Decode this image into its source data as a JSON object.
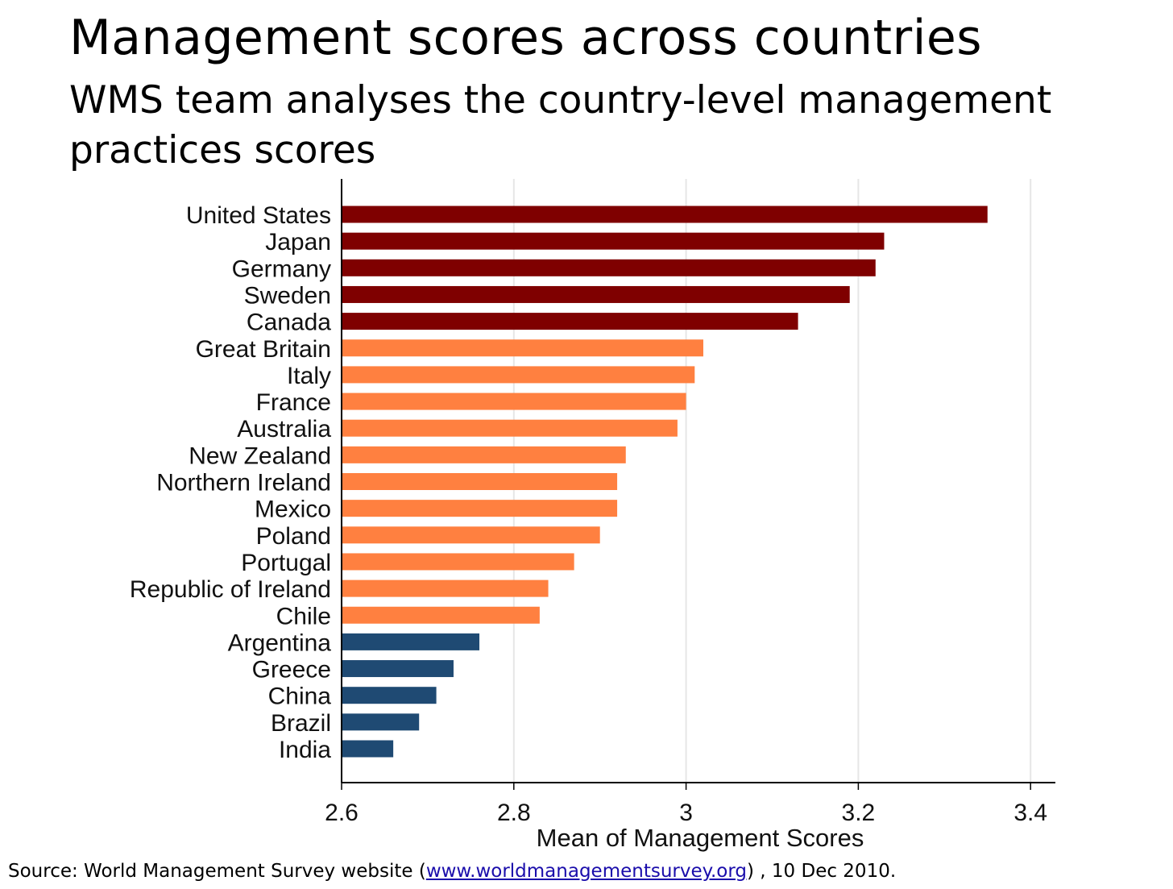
{
  "title": "Management scores across countries",
  "subtitle": "WMS team analyses the country-level management practices scores",
  "source": {
    "prefix": "Source: World Management Survey website (",
    "link_text": "www.worldmanagementsurvey.org",
    "suffix": ") , 10 Dec 2010."
  },
  "colors": {
    "top": "#7f0000",
    "middle": "#ff8040",
    "bottom": "#1f4a73",
    "grid": "#e6e6e6",
    "axis": "#000000"
  },
  "chart_data": {
    "type": "bar",
    "orientation": "horizontal",
    "xlabel": "Mean of Management Scores",
    "ylabel": "",
    "xlim": [
      2.6,
      3.4
    ],
    "xticks": [
      "2.6",
      "2.8",
      "3",
      "3.2",
      "3.4"
    ],
    "grid": true,
    "categories": [
      "United States",
      "Japan",
      "Germany",
      "Sweden",
      "Canada",
      "Great Britain",
      "Italy",
      "France",
      "Australia",
      "New Zealand",
      "Northern Ireland",
      "Mexico",
      "Poland",
      "Portugal",
      "Republic of Ireland",
      "Chile",
      "Argentina",
      "Greece",
      "China",
      "Brazil",
      "India"
    ],
    "values": [
      3.35,
      3.23,
      3.22,
      3.19,
      3.13,
      3.02,
      3.01,
      3.0,
      2.99,
      2.93,
      2.92,
      2.92,
      2.9,
      2.87,
      2.84,
      2.83,
      2.76,
      2.73,
      2.71,
      2.69,
      2.66
    ],
    "groups": [
      "top",
      "top",
      "top",
      "top",
      "top",
      "middle",
      "middle",
      "middle",
      "middle",
      "middle",
      "middle",
      "middle",
      "middle",
      "middle",
      "middle",
      "middle",
      "bottom",
      "bottom",
      "bottom",
      "bottom",
      "bottom"
    ]
  }
}
